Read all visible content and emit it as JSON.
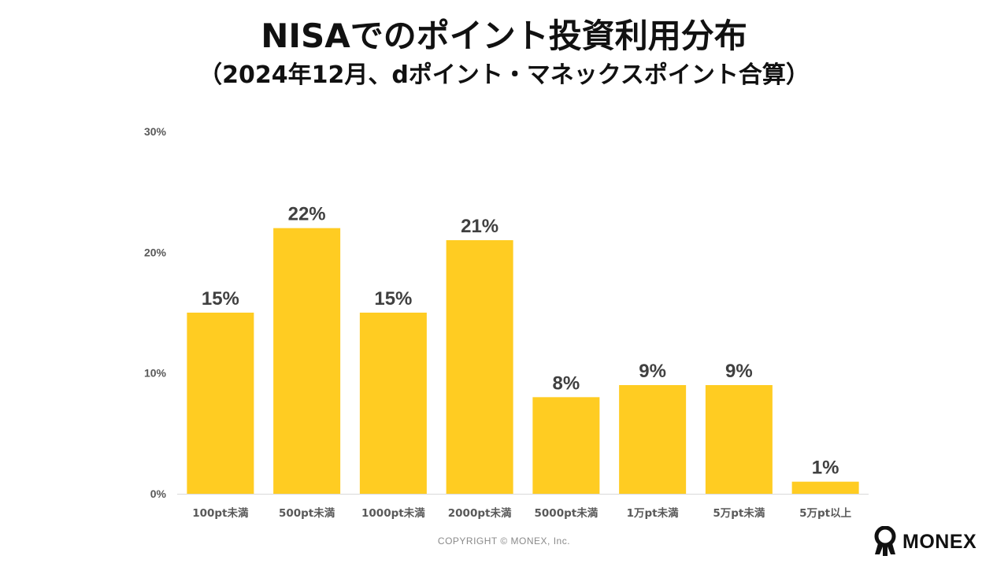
{
  "header": {
    "title": "NISAでのポイント投資利用分布",
    "subtitle": "（2024年12月、dポイント・マネックスポイント合算）"
  },
  "chart_data": {
    "type": "bar",
    "title": "NISAでのポイント投資利用分布",
    "subtitle": "（2024年12月、dポイント・マネックスポイント合算）",
    "categories": [
      "100pt未満",
      "500pt未満",
      "1000pt未満",
      "2000pt未満",
      "5000pt未満",
      "1万pt未満",
      "5万pt未満",
      "5万pt以上"
    ],
    "values": [
      15,
      22,
      15,
      21,
      8,
      9,
      9,
      1
    ],
    "data_labels": [
      "15%",
      "22%",
      "15%",
      "21%",
      "8%",
      "9%",
      "9%",
      "1%"
    ],
    "ylim": [
      0,
      30
    ],
    "yticks": [
      0,
      10,
      20,
      30
    ],
    "ytick_labels": [
      "0%",
      "10%",
      "20%",
      "30%"
    ],
    "xlabel": "",
    "ylabel": "",
    "grid": false,
    "legend": "none",
    "bar_color": "#FFCC22"
  },
  "footer": {
    "copyright": "COPYRIGHT © MONEX, Inc.",
    "logo_text": "MONEX"
  }
}
